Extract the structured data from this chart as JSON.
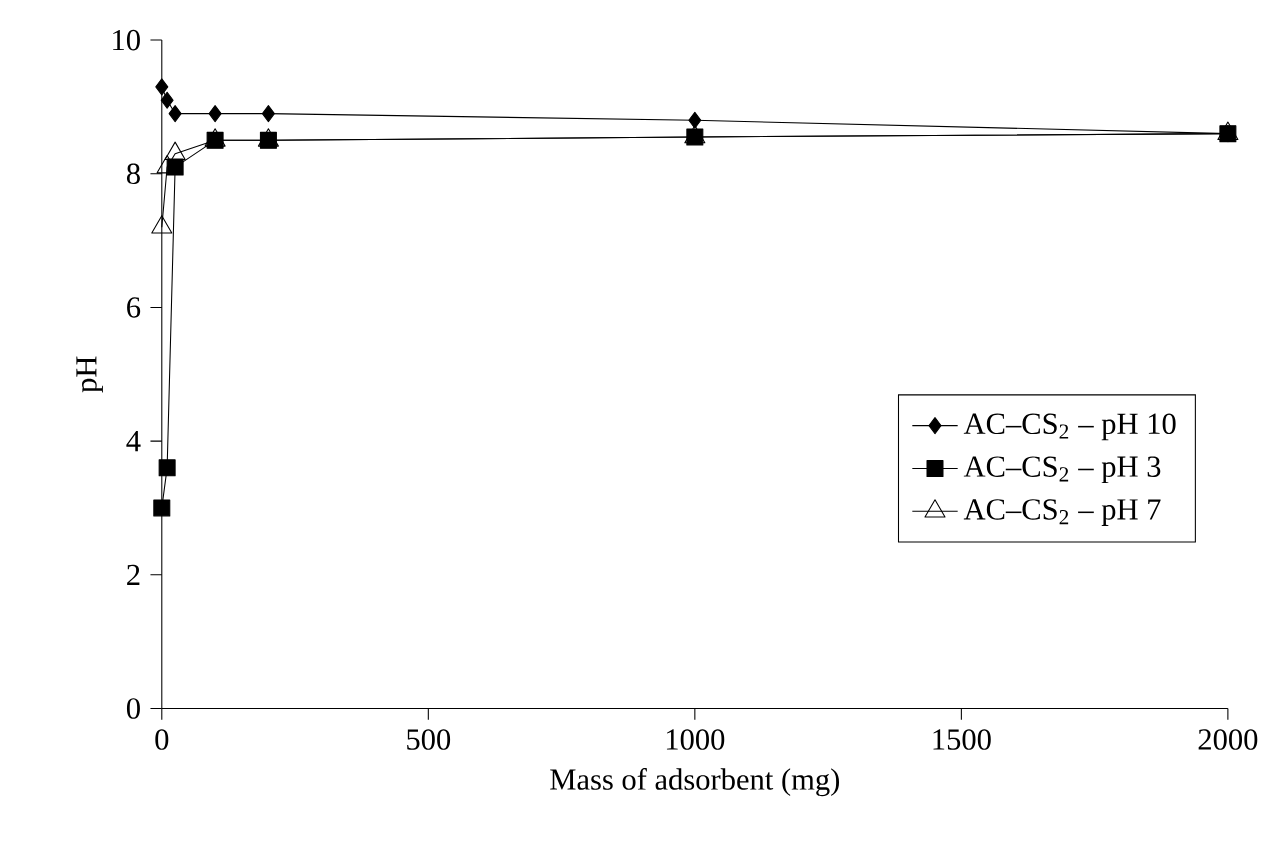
{
  "chart_data": {
    "type": "line",
    "xlabel": "Mass of adsorbent (mg)",
    "ylabel": "pH",
    "xlim": [
      0,
      2000
    ],
    "ylim": [
      0,
      10
    ],
    "xticks": [
      0,
      500,
      1000,
      1500,
      2000
    ],
    "yticks": [
      0,
      2,
      4,
      6,
      8,
      10
    ],
    "x": [
      0,
      10,
      25,
      100,
      200,
      1000,
      2000
    ],
    "legend": "right",
    "series": [
      {
        "name": "AC–CS$_{2}$ – pH 10",
        "color": "#000000",
        "marker": "diamond",
        "values": [
          9.3,
          9.1,
          8.9,
          8.9,
          8.9,
          8.8,
          8.6
        ]
      },
      {
        "name": "AC–CS$_{2}$ – pH 3",
        "color": "#000000",
        "marker": "square",
        "values": [
          3.0,
          3.6,
          8.1,
          8.5,
          8.5,
          8.55,
          8.6
        ]
      },
      {
        "name": "AC–CS$_{2}$ – pH 7",
        "color": "#000000",
        "marker": "triangle",
        "values": [
          7.2,
          8.1,
          8.3,
          8.5,
          8.5,
          8.55,
          8.6
        ]
      }
    ]
  }
}
